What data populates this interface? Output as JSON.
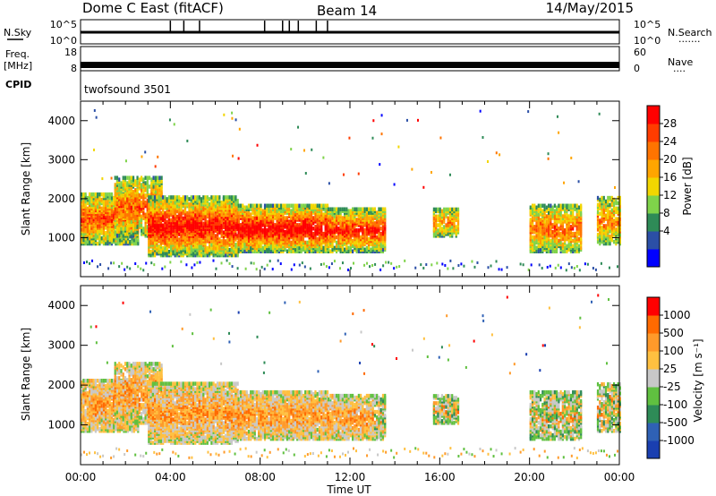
{
  "header": {
    "title": "Dome C East (fitACF)",
    "beam": "Beam 14",
    "date": "14/May/2015"
  },
  "panels": {
    "nsky": {
      "label": "N.Sky",
      "ticks": [
        "10^5",
        "10^0"
      ],
      "right_ticks": [
        "10^5",
        "10^0"
      ],
      "right_label": "N.Search",
      "right_dots": "·······"
    },
    "freq": {
      "label_line1": "Freq.",
      "label_line2": "[MHz]",
      "ticks": [
        "18",
        "8"
      ],
      "right_ticks": [
        "60",
        "0"
      ],
      "right_label": "Nave",
      "right_dots": "····"
    },
    "cpid": {
      "label": "CPID",
      "program": "twofsound 3501"
    }
  },
  "colors": {
    "power": [
      "#0000ff",
      "#2b4fa6",
      "#2e8b57",
      "#7fd34a",
      "#f2d600",
      "#ffa500",
      "#ff7400",
      "#ff3c00",
      "#ff0000"
    ],
    "velocity": [
      "#1a3fb0",
      "#2f61b5",
      "#2e8b57",
      "#60c040",
      "#c8c8c8",
      "#ffc040",
      "#ff9a2a",
      "#ff6a00",
      "#ff0000"
    ]
  },
  "chart_data": [
    {
      "type": "heatmap",
      "title": "",
      "xlabel": "",
      "ylabel": "Slant Range [km]",
      "xlim": [
        "00:00",
        "00:00"
      ],
      "x_ticks": [
        "00:00",
        "04:00",
        "08:00",
        "12:00",
        "16:00",
        "20:00",
        "00:00"
      ],
      "ylim": [
        0,
        4500
      ],
      "y_ticks": [
        "1000",
        "2000",
        "3000",
        "4000"
      ],
      "colorbar": {
        "label": "Power [dB]",
        "ticks": [
          "28",
          "24",
          "20",
          "16",
          "12",
          "8",
          "4"
        ],
        "range": [
          0,
          30
        ]
      }
    },
    {
      "type": "heatmap",
      "title": "",
      "xlabel": "Time UT",
      "ylabel": "Slant Range [km]",
      "xlim": [
        "00:00",
        "00:00"
      ],
      "x_ticks": [
        "00:00",
        "04:00",
        "08:00",
        "12:00",
        "16:00",
        "20:00",
        "00:00"
      ],
      "x_tick_labels": [
        "00:00",
        "04:00",
        "08:00",
        "12:00",
        "16:00",
        "20:00",
        "00:00"
      ],
      "ylim": [
        0,
        4500
      ],
      "y_ticks": [
        "1000",
        "2000",
        "3000",
        "4000"
      ],
      "colorbar": {
        "label": "Velocity [m s⁻¹]",
        "ticks": [
          "1000",
          "500",
          "100",
          "25",
          "-25",
          "-100",
          "-500",
          "-1000"
        ],
        "range": [
          -1000,
          1000
        ]
      }
    }
  ]
}
